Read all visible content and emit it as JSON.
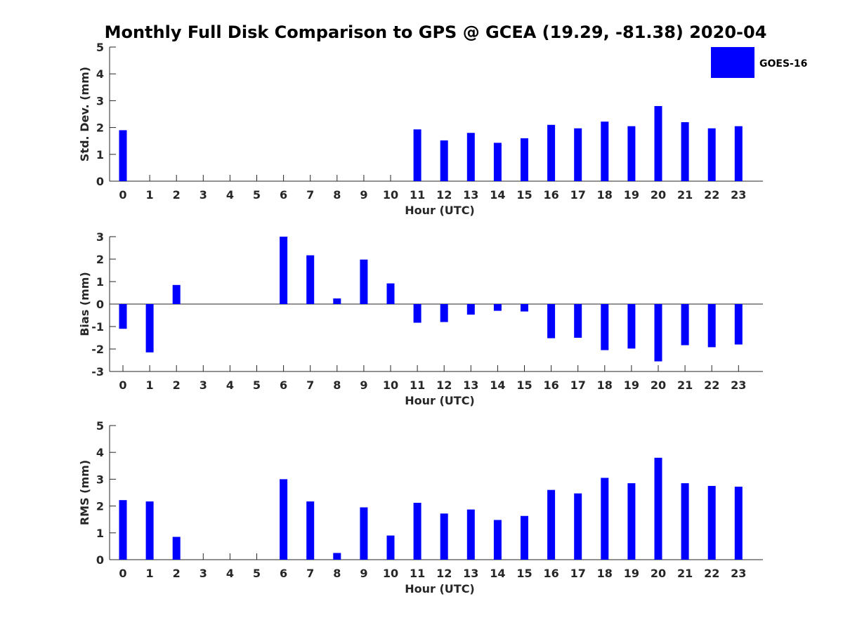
{
  "title": "Monthly Full Disk Comparison to GPS @ GCEA (19.29, -81.38) 2020-04",
  "legend": {
    "label": "GOES-16",
    "color": "#0000ff",
    "placement": "top-right"
  },
  "chart_data": [
    {
      "type": "bar",
      "xlabel": "Hour (UTC)",
      "ylabel": "Std. Dev. (mm)",
      "ylim": [
        0,
        5
      ],
      "yticks": [
        0,
        1,
        2,
        3,
        4,
        5
      ],
      "categories": [
        "0",
        "1",
        "2",
        "3",
        "4",
        "5",
        "6",
        "7",
        "8",
        "9",
        "10",
        "11",
        "12",
        "13",
        "14",
        "15",
        "16",
        "17",
        "18",
        "19",
        "20",
        "21",
        "22",
        "23"
      ],
      "series": [
        {
          "name": "GOES-16",
          "color": "#0000ff",
          "values": [
            1.9,
            null,
            null,
            null,
            null,
            null,
            null,
            null,
            null,
            null,
            null,
            1.93,
            1.52,
            1.8,
            1.43,
            1.6,
            2.1,
            1.97,
            2.22,
            2.05,
            2.8,
            2.2,
            1.97,
            2.05
          ]
        }
      ]
    },
    {
      "type": "bar",
      "xlabel": "Hour (UTC)",
      "ylabel": "Bias (mm)",
      "ylim": [
        -3,
        3
      ],
      "yticks": [
        -3,
        -2,
        -1,
        0,
        1,
        2,
        3
      ],
      "categories": [
        "0",
        "1",
        "2",
        "3",
        "4",
        "5",
        "6",
        "7",
        "8",
        "9",
        "10",
        "11",
        "12",
        "13",
        "14",
        "15",
        "16",
        "17",
        "18",
        "19",
        "20",
        "21",
        "22",
        "23"
      ],
      "series": [
        {
          "name": "GOES-16",
          "color": "#0000ff",
          "values": [
            -1.1,
            -2.15,
            0.85,
            null,
            null,
            null,
            3.0,
            2.17,
            0.25,
            1.98,
            0.92,
            -0.83,
            -0.8,
            -0.47,
            -0.3,
            -0.33,
            -1.52,
            -1.5,
            -2.05,
            -1.98,
            -2.55,
            -1.83,
            -1.92,
            -1.8
          ]
        }
      ]
    },
    {
      "type": "bar",
      "xlabel": "Hour (UTC)",
      "ylabel": "RMS (mm)",
      "ylim": [
        0,
        5
      ],
      "yticks": [
        0,
        1,
        2,
        3,
        4,
        5
      ],
      "categories": [
        "0",
        "1",
        "2",
        "3",
        "4",
        "5",
        "6",
        "7",
        "8",
        "9",
        "10",
        "11",
        "12",
        "13",
        "14",
        "15",
        "16",
        "17",
        "18",
        "19",
        "20",
        "21",
        "22",
        "23"
      ],
      "series": [
        {
          "name": "GOES-16",
          "color": "#0000ff",
          "values": [
            2.22,
            2.17,
            0.85,
            null,
            null,
            null,
            3.0,
            2.17,
            0.25,
            1.95,
            0.9,
            2.12,
            1.72,
            1.87,
            1.48,
            1.63,
            2.6,
            2.47,
            3.05,
            2.85,
            3.8,
            2.85,
            2.75,
            2.72
          ]
        }
      ]
    }
  ]
}
